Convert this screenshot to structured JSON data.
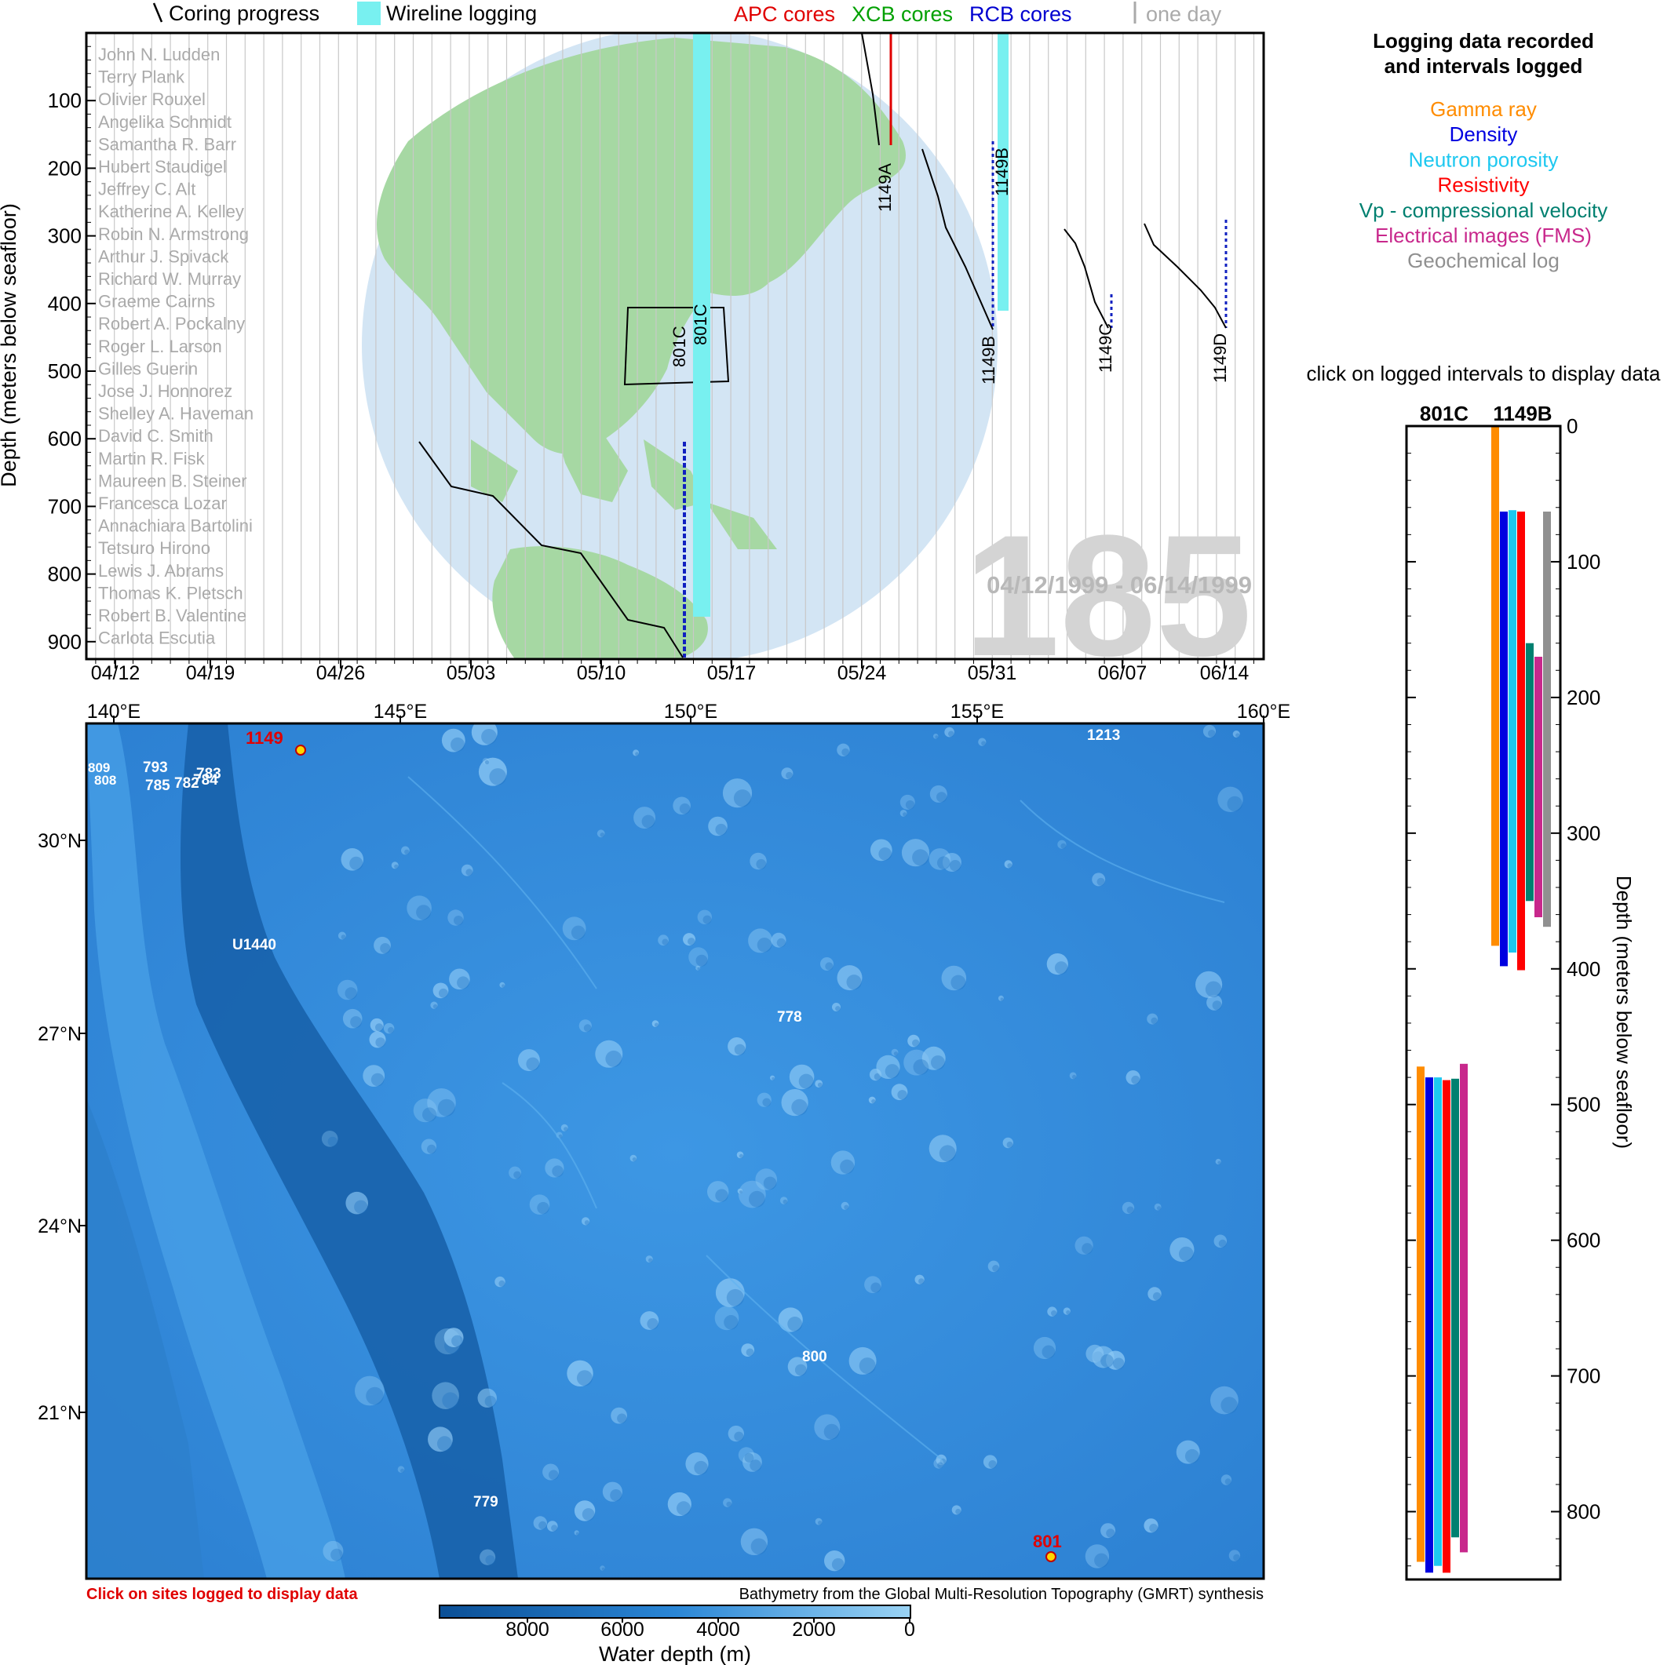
{
  "timeline": {
    "legend": {
      "coring_progress": "Coring progress",
      "wireline_logging": "Wireline logging",
      "apc": "APC cores",
      "xcb": "XCB cores",
      "rcb": "RCB cores",
      "one_day": "one day"
    },
    "ylabel": "Depth (meters below seafloor)",
    "yticks": [
      "100",
      "200",
      "300",
      "400",
      "500",
      "600",
      "700",
      "800",
      "900"
    ],
    "xticks": [
      "04/12",
      "04/19",
      "04/26",
      "05/03",
      "05/10",
      "05/17",
      "05/24",
      "05/31",
      "06/07",
      "06/14"
    ],
    "expedition": "185",
    "date_range": "04/12/1999 - 06/14/1999",
    "scientists": [
      "John N. Ludden",
      "Terry Plank",
      "Olivier Rouxel",
      "Angelika Schmidt",
      "Samantha R. Barr",
      "Hubert Staudigel",
      "Jeffrey C. Alt",
      "Katherine A. Kelley",
      "Robin N. Armstrong",
      "Arthur J. Spivack",
      "Richard W. Murray",
      "Graeme Cairns",
      "Robert A. Pockalny",
      "Roger L. Larson",
      "Gilles Guerin",
      "Jose J. Honnorez",
      "Shelley A. Haveman",
      "David C. Smith",
      "Martin R. Fisk",
      "Maureen B. Steiner",
      "Francesca Lozar",
      "Annachiara Bartolini",
      "Tetsuro Hirono",
      "Lewis J. Abrams",
      "Thomas K. Pletsch",
      "Robert B. Valentine",
      "Carlota Escutia"
    ],
    "holes": [
      "801C",
      "801C",
      "1149A",
      "1149B",
      "1149B",
      "1149C",
      "1149D"
    ]
  },
  "map": {
    "lon_ticks": [
      "140°E",
      "145°E",
      "150°E",
      "155°E",
      "160°E"
    ],
    "lat_ticks": [
      "30°N",
      "27°N",
      "24°N",
      "21°N"
    ],
    "sites_logged": [
      "1149",
      "801"
    ],
    "sites_other": [
      "809",
      "808",
      "793",
      "785",
      "782",
      "784",
      "783",
      "1213",
      "U1440",
      "778",
      "800",
      "779"
    ],
    "click_note": "Click on sites logged to display data",
    "credit": "Bathymetry from the Global Multi-Resolution Topography (GMRT) synthesis",
    "colorbar_ticks": [
      "8000",
      "6000",
      "4000",
      "2000",
      "0"
    ],
    "colorbar_label": "Water depth (m)"
  },
  "logging_panel": {
    "title_line1": "Logging data recorded",
    "title_line2": "and intervals logged",
    "click_note": "click on logged intervals to display data",
    "ylabel": "Depth (meters below seafloor)",
    "yticks": [
      "0",
      "100",
      "200",
      "300",
      "400",
      "500",
      "600",
      "700",
      "800"
    ]
  },
  "chart_data": {
    "type": "bar",
    "title": "Logging data recorded and intervals logged",
    "ylabel": "Depth (meters below seafloor)",
    "ylim": [
      0,
      850
    ],
    "categories": [
      "801C",
      "1149B"
    ],
    "colors": {
      "Gamma ray": "#ff8c00",
      "Density": "#0000e0",
      "Neutron porosity": "#1ec8f0",
      "Resistivity": "#ff0000",
      "Vp - compressional velocity": "#008070",
      "Electrical images (FMS)": "#c8288c",
      "Geochemical log": "#909090"
    },
    "series": [
      {
        "name": "Gamma ray",
        "intervals": {
          "801C": [
            472,
            837
          ],
          "1149B": [
            0,
            383
          ]
        }
      },
      {
        "name": "Density",
        "intervals": {
          "801C": [
            480,
            845
          ],
          "1149B": [
            63,
            398
          ]
        }
      },
      {
        "name": "Neutron porosity",
        "intervals": {
          "801C": [
            480,
            840
          ],
          "1149B": [
            62,
            388
          ]
        }
      },
      {
        "name": "Resistivity",
        "intervals": {
          "801C": [
            482,
            845
          ],
          "1149B": [
            63,
            401
          ]
        }
      },
      {
        "name": "Vp - compressional velocity",
        "intervals": {
          "801C": [
            481,
            819
          ],
          "1149B": [
            160,
            350
          ]
        }
      },
      {
        "name": "Electrical images (FMS)",
        "intervals": {
          "801C": [
            470,
            830
          ],
          "1149B": [
            170,
            362
          ]
        }
      },
      {
        "name": "Geochemical log",
        "intervals": {
          "1149B": [
            63,
            369
          ]
        }
      }
    ]
  }
}
